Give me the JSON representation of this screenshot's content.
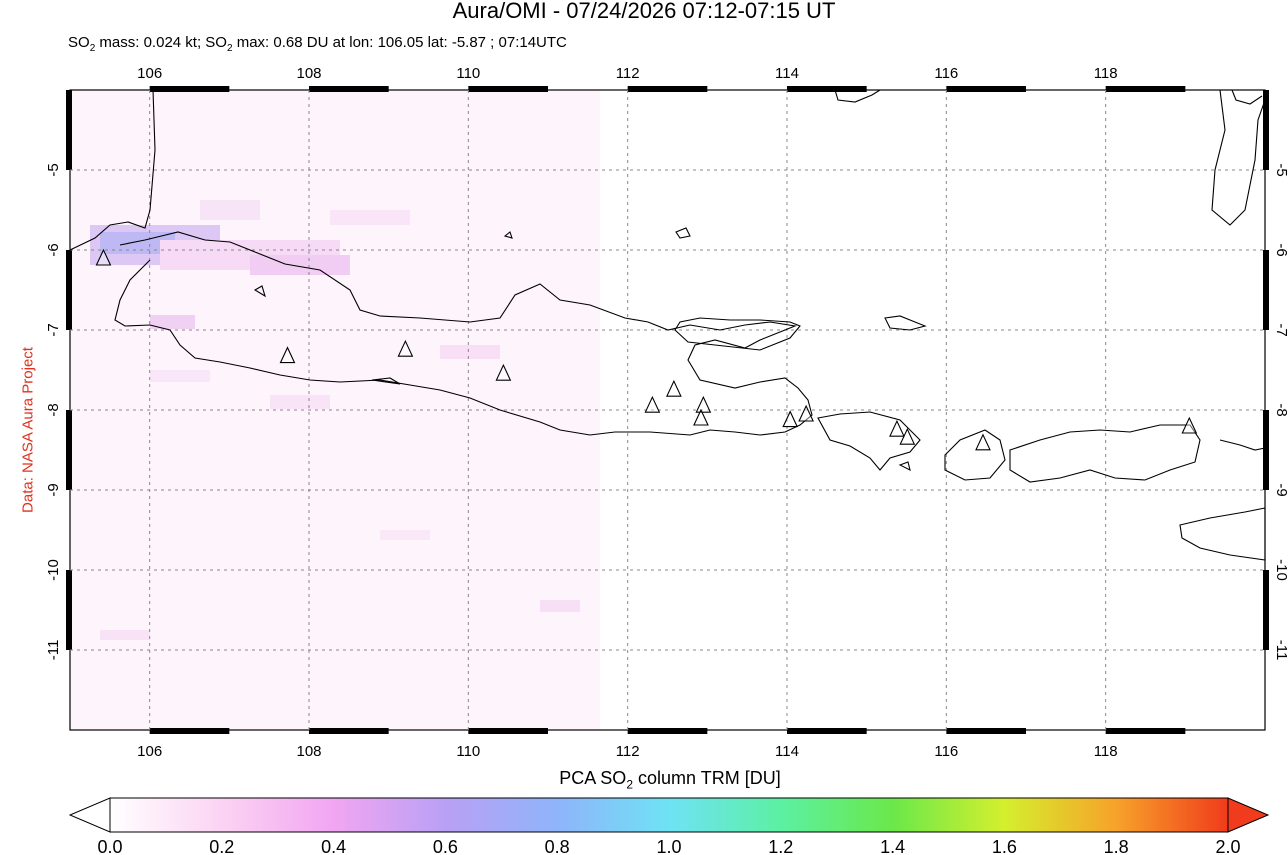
{
  "header": {
    "title": "Aura/OMI - 07/24/2026 07:12-07:15 UT",
    "subtitle_prefix": "SO",
    "subtitle_sub": "2",
    "subtitle_mid": " mass: 0.024 kt; SO",
    "subtitle_sub2": "2",
    "subtitle_rest": " max: 0.68 DU at lon: 106.05 lat: -5.87 ; 07:14UTC"
  },
  "credit": "Data: NASA Aura Project",
  "map": {
    "lon_range": [
      105,
      120
    ],
    "lat_range": [
      -12,
      -4
    ],
    "lon_ticks": [
      "106",
      "108",
      "110",
      "112",
      "114",
      "116",
      "118"
    ],
    "lat_ticks": [
      "-5",
      "-6",
      "-7",
      "-8",
      "-9",
      "-10",
      "-11"
    ],
    "grid": "dotted",
    "volcanoes": [
      {
        "lon": 105.42,
        "lat": -6.1
      },
      {
        "lon": 107.73,
        "lat": -7.32
      },
      {
        "lon": 109.21,
        "lat": -7.24
      },
      {
        "lon": 110.44,
        "lat": -7.54
      },
      {
        "lon": 112.31,
        "lat": -7.94
      },
      {
        "lon": 112.58,
        "lat": -7.74
      },
      {
        "lon": 112.95,
        "lat": -7.94
      },
      {
        "lon": 112.92,
        "lat": -8.1
      },
      {
        "lon": 114.04,
        "lat": -8.12
      },
      {
        "lon": 114.24,
        "lat": -8.05
      },
      {
        "lon": 115.38,
        "lat": -8.24
      },
      {
        "lon": 115.51,
        "lat": -8.34
      },
      {
        "lon": 116.46,
        "lat": -8.41
      },
      {
        "lon": 119.05,
        "lat": -8.2
      }
    ]
  },
  "colorbar": {
    "label_prefix": "PCA SO",
    "label_sub": "2",
    "label_rest": " column TRM [DU]",
    "ticks": [
      "0.0",
      "0.2",
      "0.4",
      "0.6",
      "0.8",
      "1.0",
      "1.2",
      "1.4",
      "1.6",
      "1.8",
      "2.0"
    ],
    "colors": [
      "#ffffff",
      "#fbd3f3",
      "#f1a6f2",
      "#b9a0f4",
      "#8fb4fa",
      "#6fe2f5",
      "#5cf0a3",
      "#6ae84a",
      "#d4ef2e",
      "#f7a22a",
      "#f03b1c"
    ]
  }
}
